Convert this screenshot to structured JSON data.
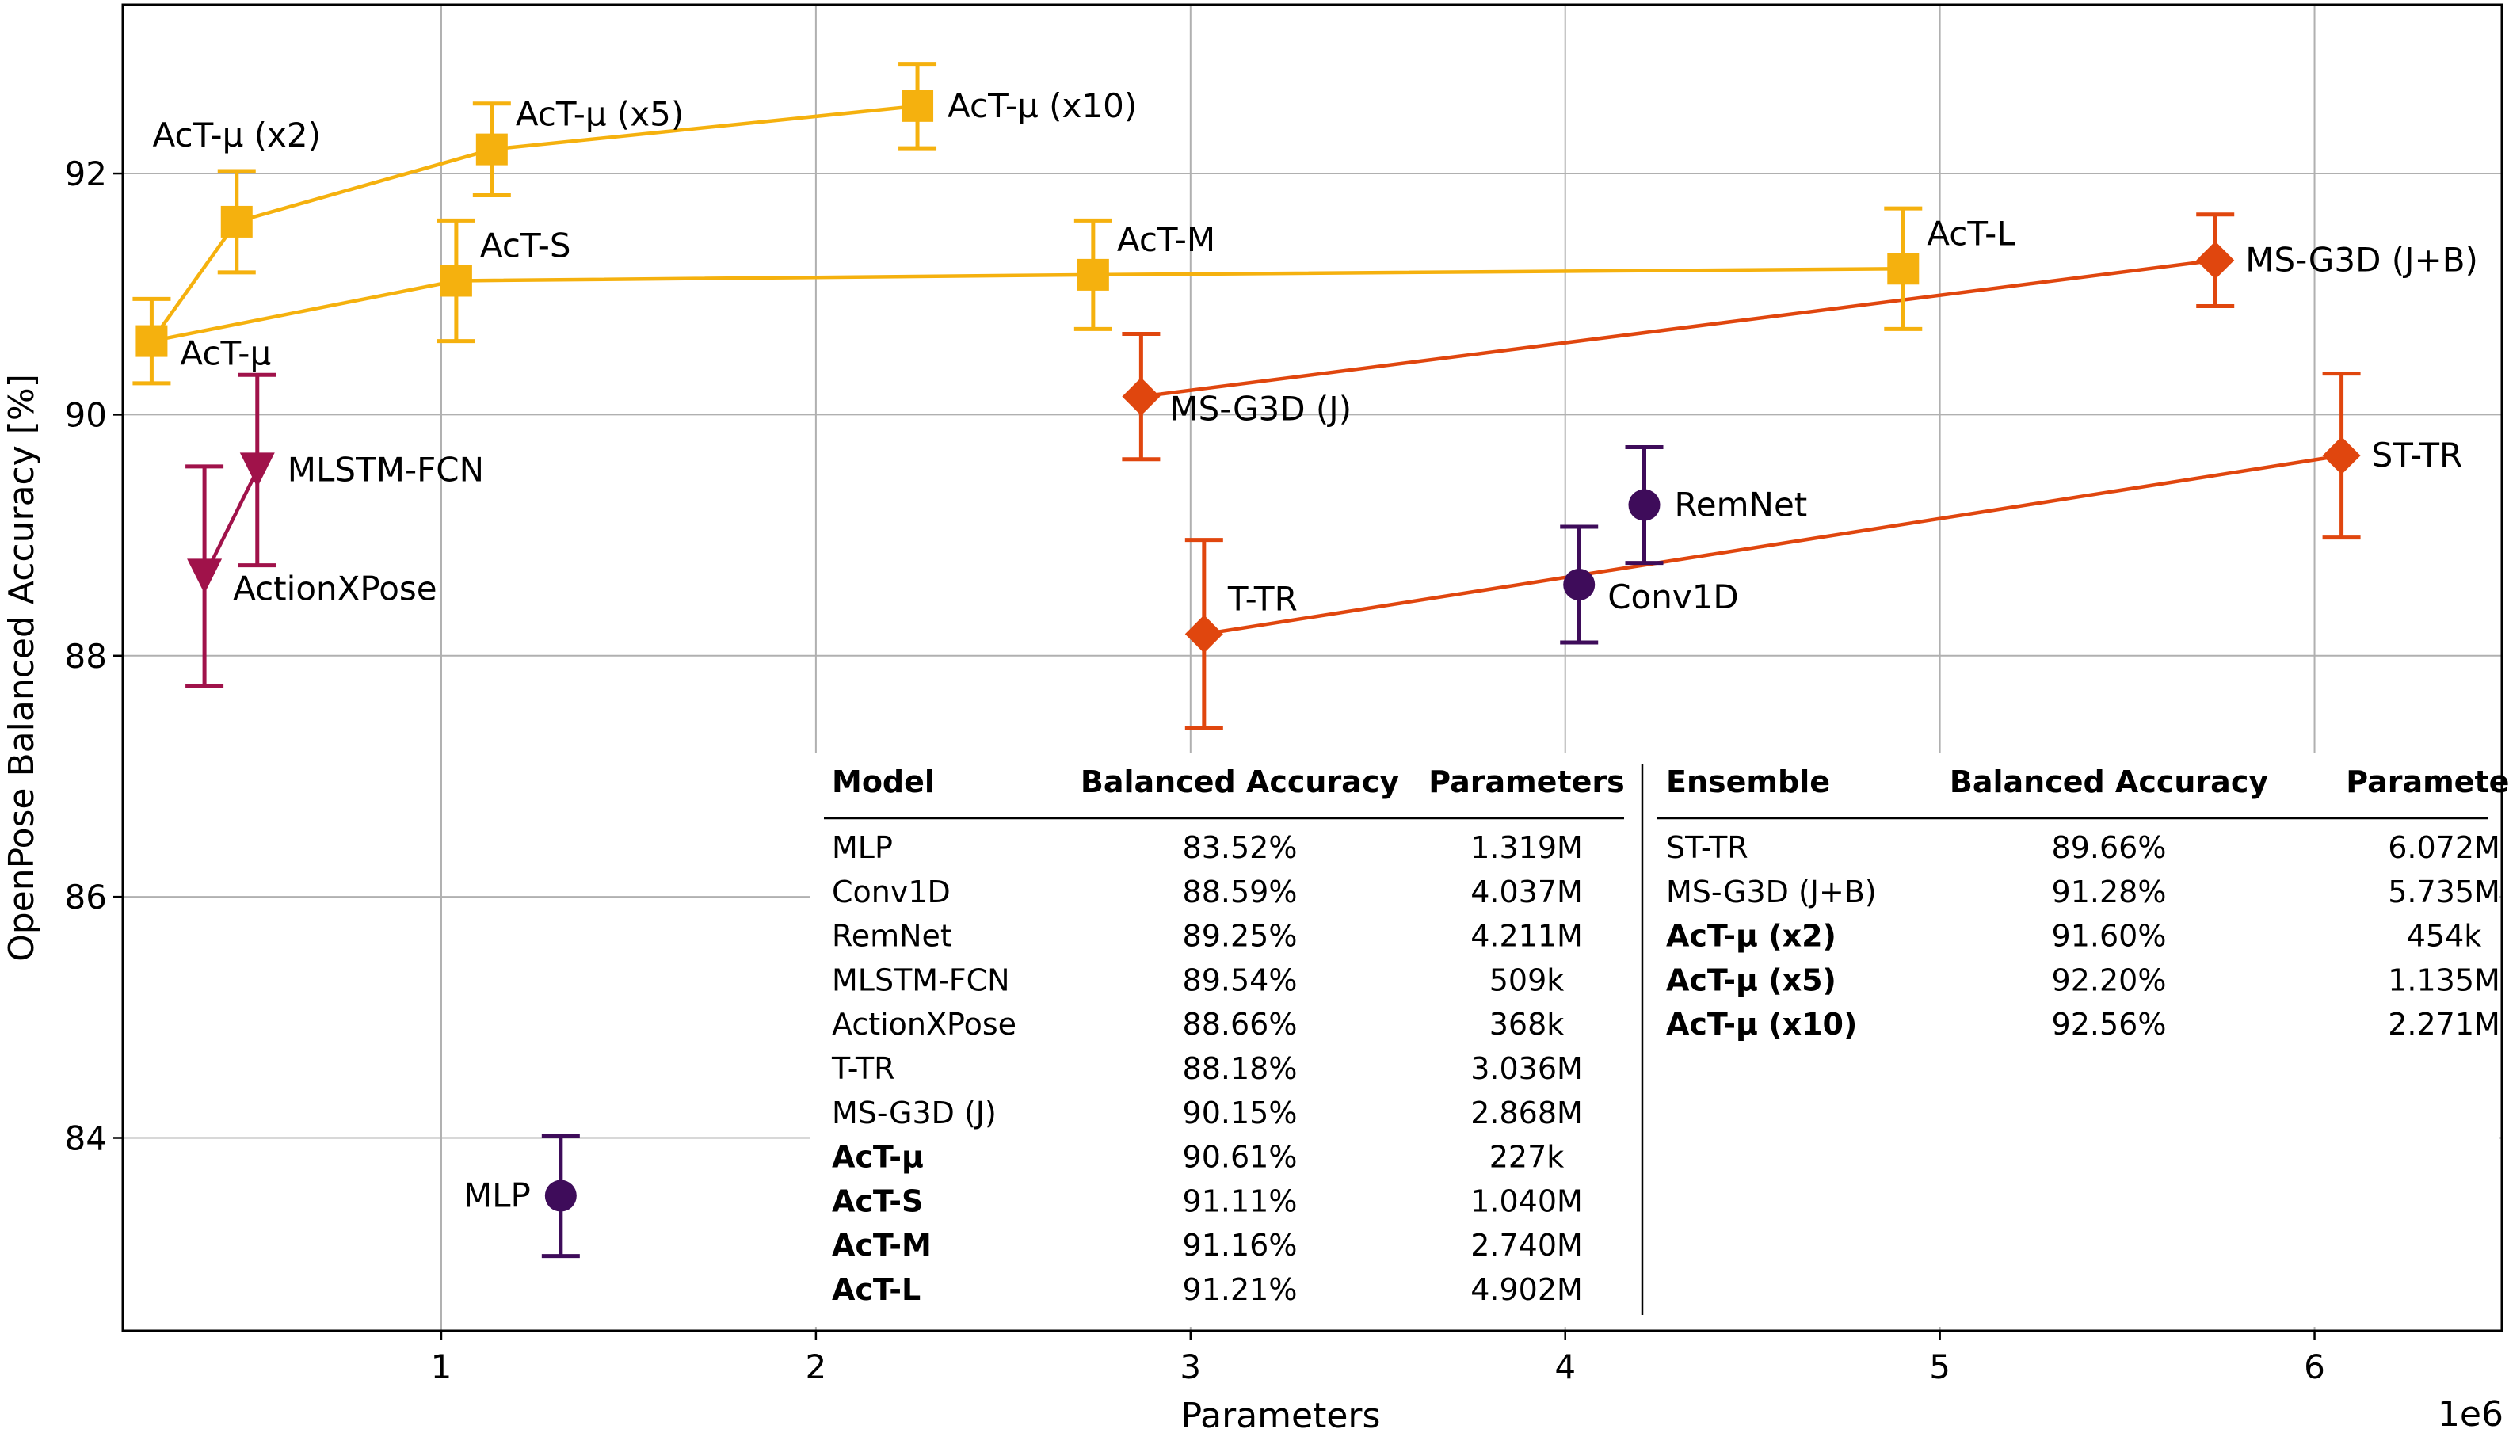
{
  "chart_data": {
    "type": "scatter",
    "xlabel": "Parameters",
    "ylabel": "OpenPose Balanced Accuracy [%]",
    "x_offset_label": "1e6",
    "xlim": [
      150000,
      6500000
    ],
    "ylim": [
      82.4,
      93.4
    ],
    "xticks": [
      {
        "v": 1000000,
        "label": "1"
      },
      {
        "v": 2000000,
        "label": "2"
      },
      {
        "v": 3000000,
        "label": "3"
      },
      {
        "v": 4000000,
        "label": "4"
      },
      {
        "v": 5000000,
        "label": "5"
      },
      {
        "v": 6000000,
        "label": "6"
      }
    ],
    "yticks": [
      {
        "v": 84,
        "label": "84"
      },
      {
        "v": 86,
        "label": "86"
      },
      {
        "v": 88,
        "label": "88"
      },
      {
        "v": 90,
        "label": "90"
      },
      {
        "v": 92,
        "label": "92"
      }
    ],
    "grid": true,
    "colors": {
      "yellow": "#f5b10e",
      "orange": "#e0460e",
      "crimson": "#a0124a",
      "purple": "#3e0c5a"
    },
    "lines": [
      {
        "color": "#f5b10e",
        "points": [
          "ActT-mu",
          "ActT-S",
          "ActT-M",
          "ActT-L"
        ]
      },
      {
        "color": "#f5b10e",
        "points": [
          "ActT-mu",
          "ActT-mu-x2",
          "ActT-mu-x5",
          "ActT-mu-x10"
        ]
      },
      {
        "color": "#e0460e",
        "points": [
          "MS-G3D-J",
          "MS-G3D-JB"
        ]
      },
      {
        "color": "#e0460e",
        "points": [
          "T-TR",
          "ST-TR"
        ]
      },
      {
        "color": "#a0124a",
        "points": [
          "ActionXPose",
          "MLSTM-FCN"
        ]
      }
    ],
    "points": [
      {
        "id": "MLP",
        "label": "MLP",
        "x": 1319000,
        "y": 83.52,
        "err": 0.5,
        "marker": "circle",
        "color": "#3e0c5a",
        "label_pos": "left"
      },
      {
        "id": "Conv1D",
        "label": "Conv1D",
        "x": 4037000,
        "y": 88.59,
        "err": 0.48,
        "marker": "circle",
        "color": "#3e0c5a",
        "label_pos": "right-below"
      },
      {
        "id": "RemNet",
        "label": "RemNet",
        "x": 4211000,
        "y": 89.25,
        "err": 0.48,
        "marker": "circle",
        "color": "#3e0c5a",
        "label_pos": "right"
      },
      {
        "id": "MLSTM-FCN",
        "label": "MLSTM-FCN",
        "x": 509000,
        "y": 89.54,
        "err": 0.79,
        "marker": "triangle",
        "color": "#a0124a",
        "label_pos": "right"
      },
      {
        "id": "ActionXPose",
        "label": "ActionXPose",
        "x": 368000,
        "y": 88.66,
        "err": 0.91,
        "marker": "triangle",
        "color": "#a0124a",
        "label_pos": "right-below"
      },
      {
        "id": "T-TR",
        "label": "T-TR",
        "x": 3036000,
        "y": 88.18,
        "err": 0.78,
        "marker": "diamond",
        "color": "#e0460e",
        "label_pos": "above-right"
      },
      {
        "id": "MS-G3D-J",
        "label": "MS-G3D (J)",
        "x": 2868000,
        "y": 90.15,
        "err": 0.52,
        "marker": "diamond",
        "color": "#e0460e",
        "label_pos": "right-below"
      },
      {
        "id": "ST-TR",
        "label": "ST-TR",
        "x": 6072000,
        "y": 89.66,
        "err": 0.68,
        "marker": "diamond",
        "color": "#e0460e",
        "label_pos": "right"
      },
      {
        "id": "MS-G3D-JB",
        "label": "MS-G3D (J+B)",
        "x": 5735000,
        "y": 91.28,
        "err": 0.38,
        "marker": "diamond",
        "color": "#e0460e",
        "label_pos": "right"
      },
      {
        "id": "ActT-mu",
        "label": "AcT-μ",
        "x": 227000,
        "y": 90.61,
        "err": 0.35,
        "marker": "square",
        "color": "#f5b10e",
        "label_pos": "right-below"
      },
      {
        "id": "ActT-S",
        "label": "AcT-S",
        "x": 1040000,
        "y": 91.11,
        "err": 0.5,
        "marker": "square",
        "color": "#f5b10e",
        "label_pos": "above-right"
      },
      {
        "id": "ActT-M",
        "label": "AcT-M",
        "x": 2740000,
        "y": 91.16,
        "err": 0.45,
        "marker": "square",
        "color": "#f5b10e",
        "label_pos": "above-right"
      },
      {
        "id": "ActT-L",
        "label": "AcT-L",
        "x": 4902000,
        "y": 91.21,
        "err": 0.5,
        "marker": "square",
        "color": "#f5b10e",
        "label_pos": "above-right"
      },
      {
        "id": "ActT-mu-x2",
        "label": "AcT-μ (x2)",
        "x": 454000,
        "y": 91.6,
        "err": 0.42,
        "marker": "square",
        "color": "#f5b10e",
        "label_pos": "above"
      },
      {
        "id": "ActT-mu-x5",
        "label": "AcT-μ (x5)",
        "x": 1135000,
        "y": 92.2,
        "err": 0.38,
        "marker": "square",
        "color": "#f5b10e",
        "label_pos": "above-right"
      },
      {
        "id": "ActT-mu-x10",
        "label": "AcT-μ (x10)",
        "x": 2271000,
        "y": 92.56,
        "err": 0.35,
        "marker": "square",
        "color": "#f5b10e",
        "label_pos": "right"
      }
    ],
    "table_left": {
      "headers": [
        "Model",
        "Balanced Accuracy",
        "Parameters"
      ],
      "rows": [
        {
          "model": "MLP",
          "acc": "83.52%",
          "params": "1.319M",
          "bold": false
        },
        {
          "model": "Conv1D",
          "acc": "88.59%",
          "params": "4.037M",
          "bold": false
        },
        {
          "model": "RemNet",
          "acc": "89.25%",
          "params": "4.211M",
          "bold": false
        },
        {
          "model": "MLSTM-FCN",
          "acc": "89.54%",
          "params": "509k",
          "bold": false
        },
        {
          "model": "ActionXPose",
          "acc": "88.66%",
          "params": "368k",
          "bold": false
        },
        {
          "model": "T-TR",
          "acc": "88.18%",
          "params": "3.036M",
          "bold": false
        },
        {
          "model": "MS-G3D (J)",
          "acc": "90.15%",
          "params": "2.868M",
          "bold": false
        },
        {
          "model": "AcT-μ",
          "acc": "90.61%",
          "params": "227k",
          "bold": true
        },
        {
          "model": "AcT-S",
          "acc": "91.11%",
          "params": "1.040M",
          "bold": true
        },
        {
          "model": "AcT-M",
          "acc": "91.16%",
          "params": "2.740M",
          "bold": true
        },
        {
          "model": "AcT-L",
          "acc": "91.21%",
          "params": "4.902M",
          "bold": true
        }
      ]
    },
    "table_right": {
      "headers": [
        "Ensemble",
        "Balanced Accuracy",
        "Parameters"
      ],
      "rows": [
        {
          "model": "ST-TR",
          "acc": "89.66%",
          "params": "6.072M",
          "bold": false
        },
        {
          "model": "MS-G3D (J+B)",
          "acc": "91.28%",
          "params": "5.735M",
          "bold": false
        },
        {
          "model": "AcT-μ (x2)",
          "acc": "91.60%",
          "params": "454k",
          "bold": true
        },
        {
          "model": "AcT-μ (x5)",
          "acc": "92.20%",
          "params": "1.135M",
          "bold": true
        },
        {
          "model": "AcT-μ (x10)",
          "acc": "92.56%",
          "params": "2.271M",
          "bold": true
        }
      ]
    }
  }
}
